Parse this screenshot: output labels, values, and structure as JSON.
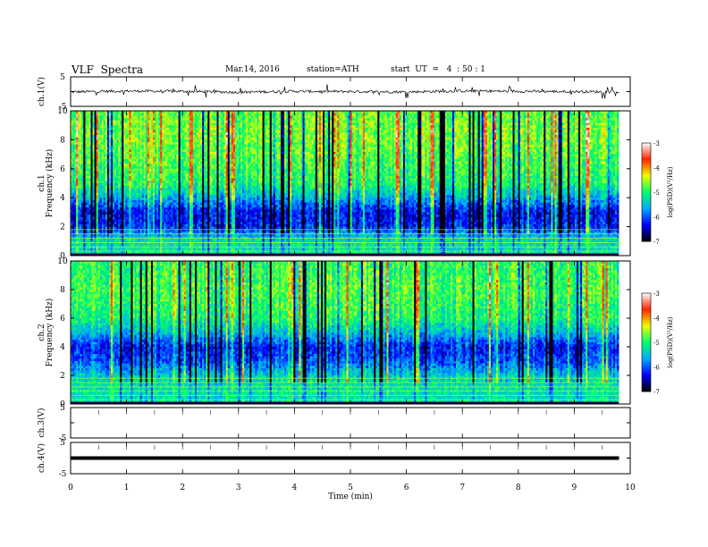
{
  "header": {
    "title": "VLF  Spectra",
    "date": "Mar.14, 2016",
    "station": "station=ATH",
    "start": "start  UT  =   4  : 50 : 1"
  },
  "colors": {
    "colormap": [
      "#000000",
      "#0000ff",
      "#00aaff",
      "#00ff66",
      "#eeff00",
      "#ff2200",
      "#ffffff"
    ]
  },
  "chart_data": [
    {
      "type": "line",
      "panel": "ch1-waveform",
      "ylabel": "ch.1(V)",
      "ylim": [
        -5,
        5
      ],
      "yticks": [
        "5",
        "-5"
      ],
      "x": [
        0,
        1,
        2,
        3,
        4,
        5,
        6,
        7,
        8,
        9,
        9.8
      ],
      "values": [
        -0.1,
        0.2,
        0.1,
        -0.2,
        0.1,
        0.0,
        -0.1,
        0.2,
        0.1,
        0.0,
        -0.1
      ],
      "note_level": "noisy signal around 0 V with spikes up to ±2 V"
    },
    {
      "type": "heatmap",
      "panel": "ch1-spectrogram",
      "ylabel": "ch.1\nFrequency (kHz)",
      "ylabel_line1": "ch.1",
      "ylabel_line2": "Frequency (kHz)",
      "ylim": [
        0,
        10
      ],
      "yticks": [
        "0",
        "2",
        "4",
        "6",
        "8",
        "10"
      ],
      "xlim": [
        0,
        9.8
      ],
      "colorbar": {
        "label": "log(PSD)(V²/Hz)",
        "range": [
          -7,
          -3
        ],
        "ticks": [
          "-3",
          "-4",
          "-5",
          "-6",
          "-7"
        ]
      },
      "profile_khz": [
        0,
        1,
        2,
        3,
        4,
        5,
        6,
        7,
        8,
        9,
        10
      ],
      "profile_logpsd": [
        -5.2,
        -5.3,
        -6.2,
        -6.3,
        -5.6,
        -5.0,
        -4.9,
        -4.8,
        -4.7,
        -4.7,
        -4.8
      ]
    },
    {
      "type": "heatmap",
      "panel": "ch2-spectrogram",
      "ylabel_line1": "ch.2",
      "ylabel_line2": "Frequency (kHz)",
      "ylim": [
        0,
        10
      ],
      "yticks": [
        "0",
        "2",
        "4",
        "6",
        "8",
        "10"
      ],
      "xlim": [
        0,
        9.8
      ],
      "colorbar": {
        "label": "log(PSD)(V²/Hz)",
        "range": [
          -7,
          -3
        ],
        "ticks": [
          "-3",
          "-4",
          "-5",
          "-6",
          "-7"
        ]
      },
      "profile_khz": [
        0,
        1,
        2,
        3,
        4,
        5,
        6,
        7,
        8,
        9,
        10
      ],
      "profile_logpsd": [
        -5.3,
        -5.2,
        -5.4,
        -6.0,
        -6.2,
        -5.5,
        -5.0,
        -4.9,
        -4.8,
        -4.9,
        -4.9
      ]
    },
    {
      "type": "line",
      "panel": "ch3-waveform",
      "ylabel": "ch.3(V)",
      "ylim": [
        -5,
        5
      ],
      "yticks": [
        "5",
        "-5"
      ],
      "x": [],
      "values": []
    },
    {
      "type": "line",
      "panel": "ch4-waveform",
      "ylabel": "ch.4(V)",
      "ylim": [
        -5,
        5
      ],
      "yticks": [
        "5",
        "-5"
      ],
      "x": [
        0,
        9.8
      ],
      "values": [
        0,
        0
      ]
    }
  ],
  "xaxis": {
    "label": "Time  (min)",
    "ticks": [
      "0",
      "1",
      "2",
      "3",
      "4",
      "5",
      "6",
      "7",
      "8",
      "9",
      "10"
    ],
    "xlim": [
      0,
      10
    ]
  }
}
